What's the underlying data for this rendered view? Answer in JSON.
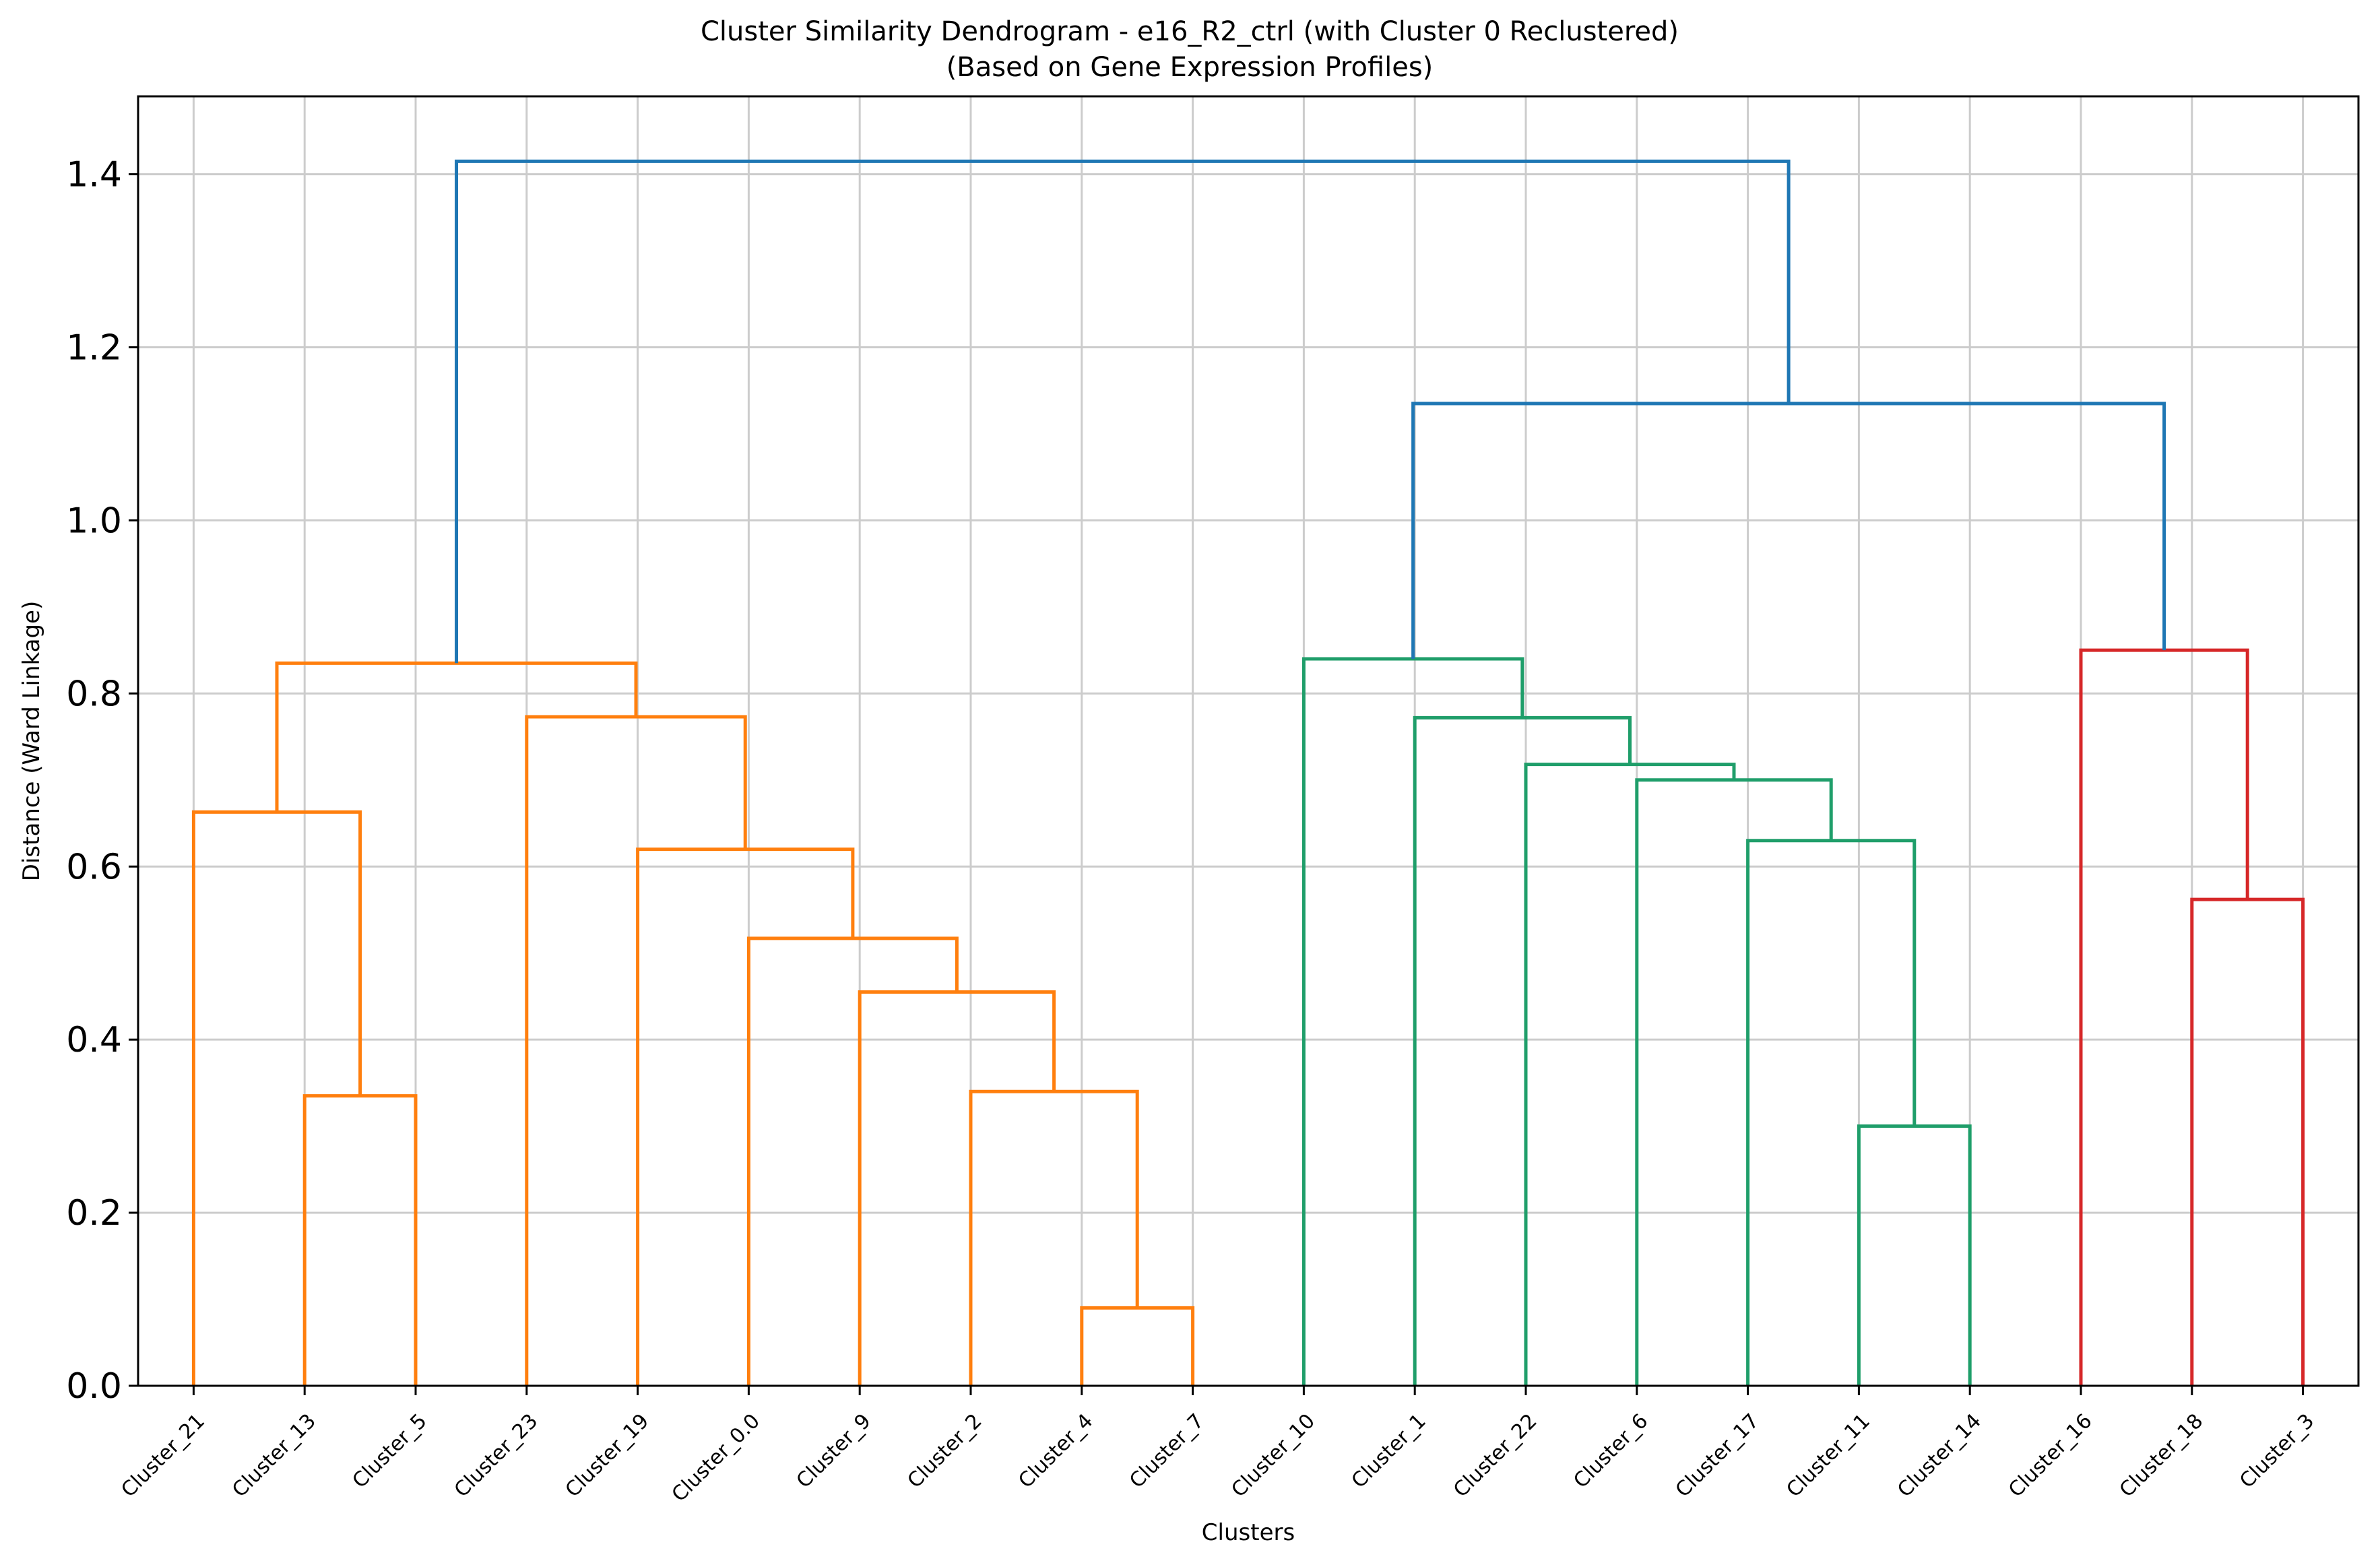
{
  "chart_data": {
    "type": "dendrogram",
    "title": "Cluster Similarity Dendrogram - e16_R2_ctrl (with Cluster 0 Reclustered)",
    "subtitle": "(Based on Gene Expression Profiles)",
    "xlabel": "Clusters",
    "ylabel": "Distance (Ward Linkage)",
    "ylim": [
      0,
      1.49
    ],
    "yticks": [
      "0.0",
      "0.2",
      "0.4",
      "0.6",
      "0.8",
      "1.0",
      "1.2",
      "1.4"
    ],
    "grid": true,
    "leaves": [
      "Cluster_21",
      "Cluster_13",
      "Cluster_5",
      "Cluster_23",
      "Cluster_19",
      "Cluster_0.0",
      "Cluster_9",
      "Cluster_2",
      "Cluster_4",
      "Cluster_7",
      "Cluster_10",
      "Cluster_1",
      "Cluster_22",
      "Cluster_6",
      "Cluster_17",
      "Cluster_11",
      "Cluster_14",
      "Cluster_16",
      "Cluster_18",
      "Cluster_3"
    ],
    "colors": {
      "orange": "#ff7f0e",
      "green": "#1f9e6a",
      "red": "#d62728",
      "blue": "#1f77b4"
    },
    "merges": [
      {
        "left": "Cluster_4",
        "right": "Cluster_7",
        "height": 0.09,
        "color": "orange"
      },
      {
        "left": "Cluster_2",
        "right": "Cluster_4+Cluster_7",
        "height": 0.34,
        "color": "orange"
      },
      {
        "left": "Cluster_9",
        "right": "Cluster_2+Cluster_4+Cluster_7",
        "height": 0.455,
        "color": "orange"
      },
      {
        "left": "Cluster_0.0",
        "right": "Cluster_9+Cluster_2+Cluster_4+Cluster_7",
        "height": 0.517,
        "color": "orange"
      },
      {
        "left": "Cluster_19",
        "right": "Cluster_0.0+Cluster_9+Cluster_2+Cluster_4+Cluster_7",
        "height": 0.62,
        "color": "orange"
      },
      {
        "left": "Cluster_23",
        "right": "Cluster_19+Cluster_0.0+Cluster_9+Cluster_2+Cluster_4+Cluster_7",
        "height": 0.773,
        "color": "orange"
      },
      {
        "left": "Cluster_13",
        "right": "Cluster_5",
        "height": 0.335,
        "color": "orange"
      },
      {
        "left": "Cluster_21",
        "right": "Cluster_13+Cluster_5",
        "height": 0.663,
        "color": "orange"
      },
      {
        "left": "Cluster_21+Cluster_13+Cluster_5",
        "right": "Cluster_23+Cluster_19+Cluster_0.0+Cluster_9+Cluster_2+Cluster_4+Cluster_7",
        "height": 0.835,
        "color": "orange"
      },
      {
        "left": "Cluster_11",
        "right": "Cluster_14",
        "height": 0.3,
        "color": "green"
      },
      {
        "left": "Cluster_17",
        "right": "Cluster_11+Cluster_14",
        "height": 0.63,
        "color": "green"
      },
      {
        "left": "Cluster_6",
        "right": "Cluster_17+Cluster_11+Cluster_14",
        "height": 0.7,
        "color": "green"
      },
      {
        "left": "Cluster_22",
        "right": "Cluster_6+Cluster_17+Cluster_11+Cluster_14",
        "height": 0.718,
        "color": "green"
      },
      {
        "left": "Cluster_1",
        "right": "Cluster_22+Cluster_6+Cluster_17+Cluster_11+Cluster_14",
        "height": 0.772,
        "color": "green"
      },
      {
        "left": "Cluster_10",
        "right": "Cluster_1+Cluster_22+Cluster_6+Cluster_17+Cluster_11+Cluster_14",
        "height": 0.84,
        "color": "green"
      },
      {
        "left": "Cluster_18",
        "right": "Cluster_3",
        "height": 0.562,
        "color": "red"
      },
      {
        "left": "Cluster_16",
        "right": "Cluster_18+Cluster_3",
        "height": 0.85,
        "color": "red"
      },
      {
        "left": "green_group",
        "right": "red_group",
        "height": 1.135,
        "color": "blue"
      },
      {
        "left": "orange_group",
        "right": "green_red_group",
        "height": 1.415,
        "color": "blue"
      }
    ]
  }
}
